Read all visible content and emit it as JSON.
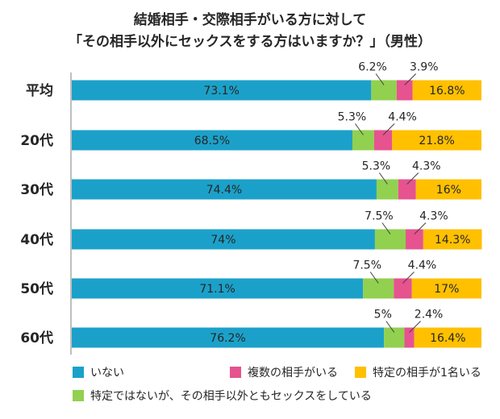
{
  "chart_data": {
    "type": "bar",
    "orientation": "horizontal",
    "stacked": true,
    "title_line1": "結婚相手・交際相手がいる方に対して",
    "title_line2": "「その相手以外にセックスをする方はいますか？」（男性）",
    "categories": [
      "平均",
      "20代",
      "30代",
      "40代",
      "50代",
      "60代"
    ],
    "series": [
      {
        "name": "いない",
        "color": "#1BA1C9",
        "values": [
          73.1,
          68.5,
          74.4,
          74,
          71.1,
          76.2
        ],
        "labels": [
          "73.1%",
          "68.5%",
          "74.4%",
          "74%",
          "71.1%",
          "76.2%"
        ]
      },
      {
        "name": "特定ではないが、その相手以外ともセックスをしている",
        "color": "#92D050",
        "values": [
          6.2,
          5.3,
          5.3,
          7.5,
          7.5,
          5
        ],
        "labels": [
          "6.2%",
          "5.3%",
          "5.3%",
          "7.5%",
          "7.5%",
          "5%"
        ]
      },
      {
        "name": "複数の相手がいる",
        "color": "#E6538E",
        "values": [
          3.9,
          4.4,
          4.3,
          4.3,
          4.4,
          2.4
        ],
        "labels": [
          "3.9%",
          "4.4%",
          "4.3%",
          "4.3%",
          "4.4%",
          "2.4%"
        ]
      },
      {
        "name": "特定の相手が1名いる",
        "color": "#FFC000",
        "values": [
          16.8,
          21.8,
          16,
          14.3,
          17,
          16.4
        ],
        "labels": [
          "16.8%",
          "21.8%",
          "16%",
          "14.3%",
          "17%",
          "16.4%"
        ]
      }
    ],
    "xlim": [
      0,
      100
    ],
    "grid": false,
    "legend_position": "bottom",
    "legend_order": [
      "いない",
      "複数の相手がいる",
      "特定の相手が1名いる",
      "特定ではないが、その相手以外ともセックスをしている"
    ]
  }
}
